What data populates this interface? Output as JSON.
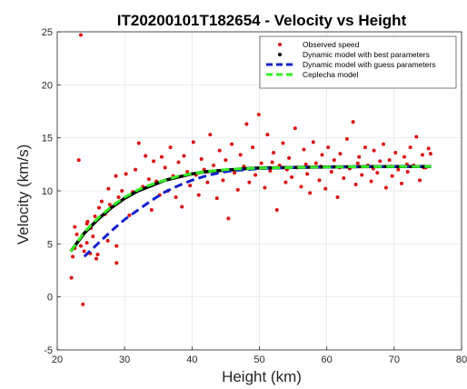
{
  "chart_data": {
    "type": "scatter",
    "title": "IT20200101T182654 - Velocity vs Height",
    "xlabel": "Height (km)",
    "ylabel": "Velocity (km/s)",
    "xlim": [
      20,
      80
    ],
    "ylim": [
      -5,
      25
    ],
    "xticks": [
      "20",
      "30",
      "40",
      "50",
      "60",
      "70",
      "80"
    ],
    "yticks": [
      "-5",
      "0",
      "5",
      "10",
      "15",
      "20",
      "25"
    ],
    "grid": true,
    "legend_position": "top-right",
    "colors": {
      "observed": "#dd1111",
      "best": "#000000",
      "guess": "#1122cc",
      "ceplecha": "#33ee22"
    },
    "series": [
      {
        "name": "Observed speed",
        "kind": "points",
        "points": [
          [
            23.5,
            24.7
          ],
          [
            23.2,
            12.9
          ],
          [
            23.8,
            -0.7
          ],
          [
            23.5,
            4.8
          ],
          [
            22.1,
            1.8
          ],
          [
            22.3,
            3.8
          ],
          [
            22.6,
            4.6
          ],
          [
            22.6,
            6.6
          ],
          [
            24.5,
            7.1
          ],
          [
            28.8,
            4.8
          ],
          [
            24.4,
            5.1
          ],
          [
            22.9,
            5.9
          ],
          [
            24.0,
            4.3
          ],
          [
            24.4,
            6.9
          ],
          [
            25.0,
            6.5
          ],
          [
            25.3,
            5.7
          ],
          [
            25.6,
            7.6
          ],
          [
            27.1,
            7.8
          ],
          [
            27.8,
            8.7
          ],
          [
            27.5,
            5.3
          ],
          [
            28.7,
            8.8
          ],
          [
            29.6,
            10.0
          ],
          [
            28.8,
            3.2
          ],
          [
            24.9,
            4.1
          ],
          [
            25.8,
            3.6
          ],
          [
            26.0,
            4.0
          ],
          [
            26.2,
            8.4
          ],
          [
            26.6,
            9.0
          ],
          [
            27.6,
            10.2
          ],
          [
            28.7,
            11.4
          ],
          [
            29.1,
            9.4
          ],
          [
            30.7,
            7.7
          ],
          [
            30.2,
            11.6
          ],
          [
            31.2,
            9.9
          ],
          [
            31.6,
            12.0
          ],
          [
            32.1,
            14.5
          ],
          [
            32.7,
            10.4
          ],
          [
            33.1,
            13.3
          ],
          [
            33.6,
            11.1
          ],
          [
            34.0,
            8.2
          ],
          [
            34.3,
            12.8
          ],
          [
            34.7,
            10.9
          ],
          [
            35.2,
            9.6
          ],
          [
            35.5,
            13.2
          ],
          [
            36.0,
            12.2
          ],
          [
            36.4,
            10.0
          ],
          [
            36.8,
            14.1
          ],
          [
            37.2,
            11.4
          ],
          [
            37.6,
            9.4
          ],
          [
            38.0,
            12.7
          ],
          [
            38.5,
            8.5
          ],
          [
            38.8,
            13.3
          ],
          [
            39.3,
            11.8
          ],
          [
            39.7,
            10.5
          ],
          [
            40.2,
            14.6
          ],
          [
            40.6,
            11.5
          ],
          [
            41.0,
            9.6
          ],
          [
            41.4,
            13.0
          ],
          [
            41.8,
            12.0
          ],
          [
            42.3,
            10.8
          ],
          [
            42.7,
            15.3
          ],
          [
            43.2,
            12.4
          ],
          [
            43.7,
            9.3
          ],
          [
            44.1,
            13.8
          ],
          [
            44.6,
            11.0
          ],
          [
            45.0,
            12.9
          ],
          [
            45.4,
            7.4
          ],
          [
            45.9,
            14.4
          ],
          [
            46.3,
            11.7
          ],
          [
            46.8,
            10.1
          ],
          [
            47.2,
            13.4
          ],
          [
            47.7,
            12.3
          ],
          [
            48.1,
            16.3
          ],
          [
            48.5,
            10.8
          ],
          [
            49.0,
            14.1
          ],
          [
            49.4,
            11.5
          ],
          [
            49.9,
            17.2
          ],
          [
            50.3,
            12.6
          ],
          [
            50.8,
            10.3
          ],
          [
            51.2,
            15.3
          ],
          [
            51.6,
            11.9
          ],
          [
            52.1,
            13.6
          ],
          [
            52.6,
            8.2
          ],
          [
            53.0,
            12.4
          ],
          [
            53.5,
            14.5
          ],
          [
            53.9,
            10.8
          ],
          [
            54.4,
            13.1
          ],
          [
            54.8,
            11.3
          ],
          [
            55.3,
            15.9
          ],
          [
            55.7,
            12.2
          ],
          [
            56.2,
            10.4
          ],
          [
            56.6,
            13.9
          ],
          [
            57.1,
            11.6
          ],
          [
            57.5,
            9.8
          ],
          [
            58.0,
            14.6
          ],
          [
            58.4,
            12.6
          ],
          [
            58.9,
            11.0
          ],
          [
            59.3,
            13.4
          ],
          [
            59.8,
            10.2
          ],
          [
            60.2,
            14.1
          ],
          [
            60.7,
            11.8
          ],
          [
            61.1,
            12.9
          ],
          [
            61.6,
            9.4
          ],
          [
            62.0,
            13.5
          ],
          [
            62.5,
            11.2
          ],
          [
            63.0,
            14.9
          ],
          [
            63.4,
            12.1
          ],
          [
            63.9,
            16.5
          ],
          [
            64.3,
            10.6
          ],
          [
            64.8,
            13.2
          ],
          [
            65.2,
            11.5
          ],
          [
            65.7,
            14.1
          ],
          [
            66.1,
            12.4
          ],
          [
            66.6,
            10.9
          ],
          [
            67.0,
            13.8
          ],
          [
            67.5,
            11.7
          ],
          [
            67.9,
            12.8
          ],
          [
            68.4,
            14.4
          ],
          [
            68.8,
            10.3
          ],
          [
            69.3,
            12.9
          ],
          [
            69.7,
            11.4
          ],
          [
            70.2,
            13.6
          ],
          [
            70.6,
            12.0
          ],
          [
            71.1,
            10.7
          ],
          [
            71.5,
            13.2
          ],
          [
            72.0,
            11.8
          ],
          [
            72.4,
            14.1
          ],
          [
            72.9,
            12.4
          ],
          [
            73.3,
            15.1
          ],
          [
            73.8,
            11.0
          ],
          [
            74.2,
            13.4
          ],
          [
            74.7,
            12.2
          ],
          [
            75.1,
            14.0
          ],
          [
            75.4,
            13.5
          ],
          [
            49.2,
            12.1
          ],
          [
            51.9,
            12.7
          ],
          [
            54.1,
            12.0
          ],
          [
            56.9,
            12.5
          ],
          [
            59.1,
            12.3
          ],
          [
            61.9,
            12.2
          ],
          [
            64.6,
            12.6
          ],
          [
            66.9,
            12.1
          ],
          [
            69.6,
            12.3
          ],
          [
            71.9,
            12.5
          ],
          [
            74.4,
            12.2
          ]
        ]
      },
      {
        "name": "Dynamic model with best parameters",
        "kind": "curve",
        "x": [
          22,
          24,
          26,
          28,
          30,
          32,
          34,
          36,
          38,
          40,
          42,
          44,
          46,
          48,
          50,
          55,
          60,
          65,
          70,
          75.5
        ],
        "y": [
          4.3,
          6.0,
          7.3,
          8.4,
          9.3,
          10.0,
          10.5,
          11.0,
          11.3,
          11.6,
          11.8,
          11.9,
          12.0,
          12.1,
          12.15,
          12.2,
          12.25,
          12.28,
          12.3,
          12.3
        ]
      },
      {
        "name": "Dynamic model with guess parameters",
        "kind": "curve",
        "x": [
          24,
          26,
          28,
          30,
          32,
          34,
          36,
          38,
          40,
          42,
          44,
          46,
          48,
          50,
          55,
          60,
          65,
          70,
          75.5
        ],
        "y": [
          3.8,
          5.0,
          6.2,
          7.3,
          8.2,
          9.1,
          9.9,
          10.5,
          11.0,
          11.4,
          11.7,
          11.9,
          12.0,
          12.1,
          12.2,
          12.25,
          12.28,
          12.3,
          12.3
        ]
      },
      {
        "name": "Ceplecha model",
        "kind": "curve",
        "x": [
          22,
          24,
          26,
          28,
          30,
          32,
          34,
          36,
          38,
          40,
          42,
          44,
          46,
          48,
          50,
          55,
          60,
          65,
          70,
          75.5
        ],
        "y": [
          4.3,
          6.1,
          7.4,
          8.5,
          9.4,
          10.1,
          10.6,
          11.0,
          11.4,
          11.6,
          11.8,
          11.95,
          12.05,
          12.1,
          12.15,
          12.2,
          12.25,
          12.28,
          12.3,
          12.3
        ]
      }
    ]
  }
}
